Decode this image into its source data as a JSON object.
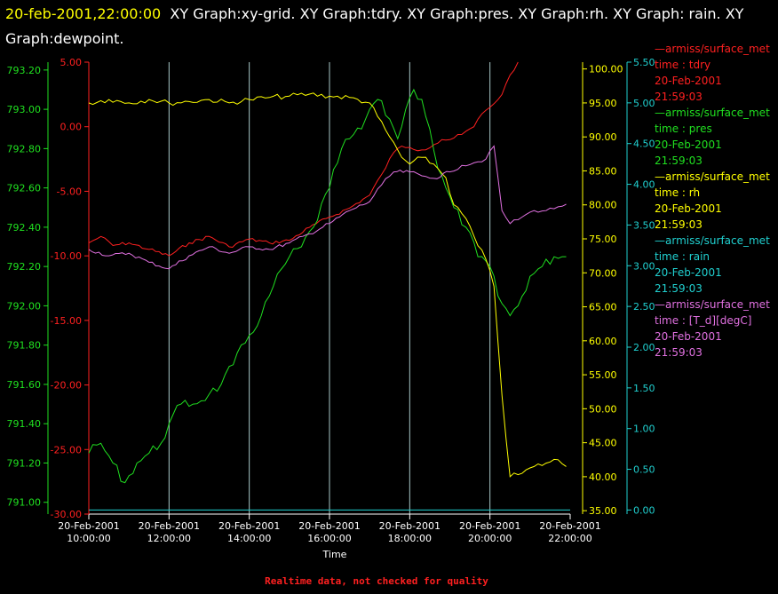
{
  "header": {
    "timestamp": "20-feb-2001,22:00:00",
    "title_text": "XY Graph:xy-grid.  XY Graph:tdry.  XY Graph:pres.  XY Graph:rh.  XY Graph: rain.  XY Graph:dewpoint."
  },
  "legend": [
    {
      "source": "armiss/surface_met",
      "var": "time : tdry",
      "date": "20-Feb-2001",
      "time": "21:59:03",
      "color": "#ff2020"
    },
    {
      "source": "armiss/surface_met",
      "var": "time : pres",
      "date": "20-Feb-2001",
      "time": "21:59:03",
      "color": "#20e020"
    },
    {
      "source": "armiss/surface_met",
      "var": "time : rh",
      "date": "20-Feb-2001",
      "time": "21:59:03",
      "color": "#ffff00"
    },
    {
      "source": "armiss/surface_met",
      "var": "time : rain",
      "date": "20-Feb-2001",
      "time": "21:59:03",
      "color": "#20d0d0"
    },
    {
      "source": "armiss/surface_met",
      "var": "time : [T_d][degC]",
      "date": "20-Feb-2001",
      "time": "21:59:03",
      "color": "#e070e0"
    }
  ],
  "footer": "Realtime data, not checked for quality",
  "chart_data": {
    "type": "line",
    "xlabel": "Time",
    "x_ticks": [
      {
        "date": "20-Feb-2001",
        "time": "10:00:00"
      },
      {
        "date": "20-Feb-2001",
        "time": "12:00:00"
      },
      {
        "date": "20-Feb-2001",
        "time": "14:00:00"
      },
      {
        "date": "20-Feb-2001",
        "time": "16:00:00"
      },
      {
        "date": "20-Feb-2001",
        "time": "18:00:00"
      },
      {
        "date": "20-Feb-2001",
        "time": "20:00:00"
      },
      {
        "date": "20-Feb-2001",
        "time": "22:00:00"
      }
    ],
    "xlim_hours": [
      10,
      22
    ],
    "grid": "vertical lines at x ticks",
    "axes": [
      {
        "id": "pres",
        "color": "#20e020",
        "range": [
          790.94,
          793.24
        ],
        "ticks": [
          "791.00",
          "791.20",
          "791.40",
          "791.60",
          "791.80",
          "792.00",
          "792.20",
          "792.40",
          "792.60",
          "792.80",
          "793.00",
          "793.20"
        ]
      },
      {
        "id": "tdry",
        "color": "#ff2020",
        "range": [
          -30,
          5
        ],
        "ticks": [
          "5.00",
          "0.00",
          "-5.00",
          "-10.00",
          "-15.00",
          "-20.00",
          "-25.00",
          "-30.00"
        ]
      },
      {
        "id": "rh",
        "color": "#ffff00",
        "range": [
          34.5,
          101
        ],
        "ticks": [
          "35.00",
          "40.00",
          "45.00",
          "50.00",
          "55.00",
          "60.00",
          "65.00",
          "70.00",
          "75.00",
          "80.00",
          "85.00",
          "90.00",
          "95.00",
          "100.00"
        ]
      },
      {
        "id": "rain",
        "color": "#20d0d0",
        "range": [
          -0.05,
          5.5
        ],
        "ticks": [
          "0.00",
          "0.50",
          "1.00",
          "1.50",
          "2.00",
          "2.50",
          "3.00",
          "3.50",
          "4.00",
          "4.50",
          "5.00",
          "5.50"
        ]
      }
    ],
    "series": [
      {
        "id": "tdry",
        "axis": "tdry",
        "color": "#ff2020",
        "x": [
          10.0,
          10.3,
          10.6,
          11.0,
          11.5,
          12.0,
          12.5,
          13.0,
          13.5,
          14.0,
          14.5,
          15.0,
          15.5,
          16.0,
          16.5,
          17.0,
          17.3,
          17.6,
          17.8,
          18.0,
          18.3,
          18.6,
          18.8,
          19.0,
          19.3,
          19.6,
          19.8,
          20.0,
          20.3,
          20.5,
          20.7
        ],
        "values": [
          -9.0,
          -8.5,
          -9.2,
          -9.0,
          -9.5,
          -10.0,
          -9.0,
          -8.5,
          -9.3,
          -8.7,
          -9.0,
          -8.8,
          -7.8,
          -7.0,
          -6.3,
          -5.3,
          -3.7,
          -2.0,
          -1.5,
          -1.6,
          -1.8,
          -1.4,
          -1.0,
          -1.0,
          -0.6,
          0.0,
          1.0,
          1.5,
          2.5,
          4.0,
          5.0
        ]
      },
      {
        "id": "pres",
        "axis": "pres",
        "color": "#20e020",
        "x": [
          10.0,
          10.3,
          10.6,
          10.9,
          11.2,
          11.5,
          11.8,
          12.0,
          12.3,
          12.6,
          13.0,
          13.3,
          13.6,
          14.0,
          14.3,
          14.6,
          15.0,
          15.3,
          15.6,
          16.0,
          16.3,
          16.5,
          16.8,
          17.0,
          17.2,
          17.5,
          17.7,
          17.9,
          18.1,
          18.3,
          18.5,
          18.7,
          18.9,
          19.1,
          19.4,
          19.7,
          20.0,
          20.2,
          20.5,
          20.7,
          21.0,
          21.3,
          21.6,
          21.9
        ],
        "values": [
          791.25,
          791.3,
          791.2,
          791.1,
          791.2,
          791.25,
          791.3,
          791.4,
          791.5,
          791.5,
          791.55,
          791.6,
          791.7,
          791.85,
          791.95,
          792.1,
          792.25,
          792.3,
          792.4,
          792.6,
          792.8,
          792.85,
          792.9,
          793.0,
          793.05,
          792.95,
          792.85,
          793.0,
          793.1,
          793.05,
          792.9,
          792.7,
          792.6,
          792.5,
          792.4,
          792.25,
          792.2,
          792.05,
          791.95,
          792.0,
          792.15,
          792.2,
          792.25,
          792.25
        ]
      },
      {
        "id": "rh",
        "axis": "rh",
        "color": "#ffff00",
        "x": [
          10.0,
          10.5,
          11.0,
          11.5,
          12.0,
          12.5,
          13.0,
          13.5,
          14.0,
          14.5,
          15.0,
          15.5,
          16.0,
          16.5,
          17.0,
          17.2,
          17.5,
          17.8,
          18.0,
          18.3,
          18.6,
          18.9,
          19.1,
          19.4,
          19.7,
          19.9,
          20.1,
          20.3,
          20.5,
          20.8,
          21.1,
          21.4,
          21.7,
          21.9
        ],
        "values": [
          95.0,
          95.5,
          95.0,
          95.5,
          95.0,
          95.2,
          95.5,
          95.0,
          95.5,
          95.8,
          96.0,
          96.3,
          96.0,
          95.8,
          95.0,
          93.0,
          90.0,
          87.0,
          86.0,
          87.0,
          86.0,
          84.0,
          80.0,
          78.0,
          74.0,
          72.0,
          68.0,
          52.0,
          40.0,
          40.5,
          41.5,
          42.0,
          42.5,
          41.5
        ]
      },
      {
        "id": "rain",
        "axis": "rain",
        "color": "#20d0d0",
        "x": [
          10.0,
          22.0
        ],
        "values": [
          0.0,
          0.0
        ]
      },
      {
        "id": "dewpoint",
        "axis": "tdry",
        "color": "#e070e0",
        "x": [
          10.0,
          10.5,
          11.0,
          11.5,
          12.0,
          12.5,
          13.0,
          13.5,
          14.0,
          14.5,
          15.0,
          15.5,
          16.0,
          16.5,
          17.0,
          17.3,
          17.6,
          18.0,
          18.3,
          18.6,
          19.0,
          19.3,
          19.6,
          19.9,
          20.1,
          20.3,
          20.5,
          20.8,
          21.1,
          21.4,
          21.7,
          21.9
        ],
        "values": [
          -9.5,
          -10.0,
          -9.8,
          -10.5,
          -11.0,
          -10.0,
          -9.3,
          -9.8,
          -9.3,
          -9.5,
          -9.0,
          -8.3,
          -7.5,
          -6.5,
          -5.8,
          -4.5,
          -3.5,
          -3.5,
          -3.8,
          -4.0,
          -3.5,
          -3.0,
          -2.8,
          -2.5,
          -1.5,
          -6.5,
          -7.5,
          -7.0,
          -6.5,
          -6.5,
          -6.2,
          -6.0
        ]
      }
    ]
  }
}
